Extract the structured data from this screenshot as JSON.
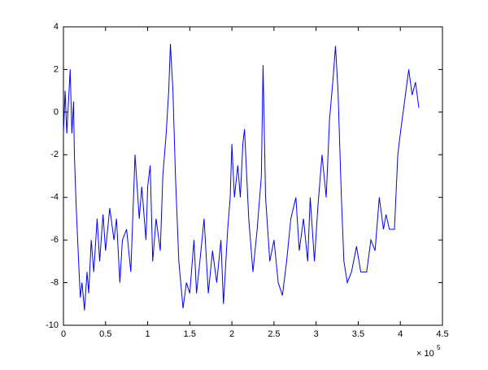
{
  "chart_data": {
    "type": "line",
    "x_multiplier": "× 10",
    "x_exponent": "5",
    "series": [
      {
        "color": "#0000ff",
        "x": [
          0,
          0.02,
          0.04,
          0.06,
          0.08,
          0.1,
          0.12,
          0.13,
          0.15,
          0.18,
          0.2,
          0.22,
          0.25,
          0.28,
          0.3,
          0.33,
          0.36,
          0.4,
          0.43,
          0.47,
          0.5,
          0.55,
          0.6,
          0.63,
          0.67,
          0.7,
          0.75,
          0.8,
          0.85,
          0.9,
          0.93,
          0.98,
          1.0,
          1.03,
          1.06,
          1.1,
          1.15,
          1.18,
          1.22,
          1.25,
          1.27,
          1.3,
          1.33,
          1.37,
          1.42,
          1.46,
          1.5,
          1.55,
          1.58,
          1.62,
          1.67,
          1.72,
          1.77,
          1.82,
          1.87,
          1.9,
          1.95,
          1.98,
          2.0,
          2.03,
          2.07,
          2.1,
          2.13,
          2.15,
          2.2,
          2.25,
          2.3,
          2.35,
          2.37,
          2.4,
          2.45,
          2.5,
          2.55,
          2.6,
          2.65,
          2.7,
          2.76,
          2.8,
          2.85,
          2.9,
          2.93,
          2.98,
          3.02,
          3.07,
          3.12,
          3.16,
          3.2,
          3.23,
          3.26,
          3.3,
          3.33,
          3.37,
          3.42,
          3.48,
          3.53,
          3.6,
          3.65,
          3.7,
          3.75,
          3.8,
          3.83,
          3.87,
          3.93,
          3.97,
          4.0,
          4.05,
          4.1,
          4.14,
          4.18,
          4.22
        ],
        "values": [
          -1,
          1,
          -1,
          0.5,
          2,
          -1,
          0.5,
          -2,
          -4.3,
          -7,
          -8.7,
          -8,
          -9.3,
          -7.5,
          -8.5,
          -6,
          -7.5,
          -5,
          -7,
          -4.8,
          -6.5,
          -4.5,
          -6,
          -5,
          -8,
          -6,
          -5.5,
          -7.5,
          -2,
          -5,
          -3.5,
          -6,
          -3.5,
          -2.5,
          -7,
          -5,
          -6.5,
          -3,
          -1,
          1,
          3.2,
          1,
          -3,
          -7,
          -9.2,
          -8,
          -8.5,
          -6,
          -8.5,
          -7,
          -5,
          -8.5,
          -6.5,
          -8,
          -6,
          -9,
          -5.5,
          -4,
          -1.5,
          -4,
          -2.5,
          -4,
          -1.5,
          -0.8,
          -5,
          -7.5,
          -5.5,
          -3,
          2.2,
          -4,
          -7,
          -6,
          -8,
          -8.6,
          -7,
          -5,
          -4,
          -6.5,
          -5,
          -7,
          -4,
          -7,
          -4.5,
          -2,
          -4,
          -0.3,
          1.5,
          3.1,
          1,
          -4,
          -7,
          -8,
          -7.5,
          -6.3,
          -7.5,
          -7.5,
          -6,
          -6.5,
          -4,
          -5.5,
          -4.8,
          -5.5,
          -5.5,
          -2,
          -1,
          0.5,
          2,
          0.8,
          1.4,
          0.2
        ]
      }
    ],
    "xlim": [
      0,
      4.5
    ],
    "xticks": [
      0,
      0.5,
      1,
      1.5,
      2,
      2.5,
      3,
      3.5,
      4,
      4.5
    ],
    "ylim": [
      -10,
      4
    ],
    "yticks": [
      -10,
      -8,
      -6,
      -4,
      -2,
      0,
      2,
      4
    ]
  }
}
